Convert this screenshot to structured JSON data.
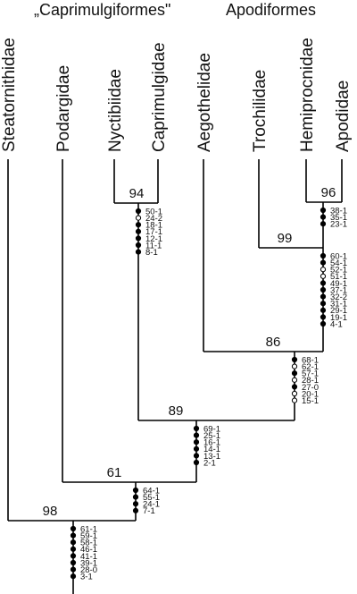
{
  "groups": {
    "left": "„Caprimulgiformes\"",
    "right": "Apodiformes"
  },
  "taxa": [
    {
      "id": "steatornithidae",
      "name": "Steatornithidae"
    },
    {
      "id": "podargidae",
      "name": "Podargidae"
    },
    {
      "id": "nyctibiidae",
      "name": "Nyctibiidae"
    },
    {
      "id": "caprimulgidae",
      "name": "Caprimulgidae"
    },
    {
      "id": "aegothelidae",
      "name": "Aegothelidae"
    },
    {
      "id": "trochilidae",
      "name": "Trochilidae"
    },
    {
      "id": "hemiprocnidae",
      "name": "Hemiprocnidae"
    },
    {
      "id": "apodidae",
      "name": "Apodidae"
    }
  ],
  "nodes": [
    {
      "id": "n94",
      "support": "94",
      "children": [
        "nyctibiidae",
        "caprimulgidae"
      ],
      "characters": [
        {
          "label": "50-1",
          "marker": "filled"
        },
        {
          "label": "24-2",
          "marker": "open"
        },
        {
          "label": "18-1",
          "marker": "filled"
        },
        {
          "label": "17-1",
          "marker": "filled"
        },
        {
          "label": "12-1",
          "marker": "filled"
        },
        {
          "label": "11-1",
          "marker": "filled"
        },
        {
          "label": "8-1",
          "marker": "filled"
        }
      ]
    },
    {
      "id": "n96",
      "support": "96",
      "children": [
        "hemiprocnidae",
        "apodidae"
      ],
      "characters": [
        {
          "label": "38-1",
          "marker": "filled"
        },
        {
          "label": "35-1",
          "marker": "filled"
        },
        {
          "label": "23-1",
          "marker": "filled"
        }
      ]
    },
    {
      "id": "n99",
      "support": "99",
      "children": [
        "trochilidae",
        "n96"
      ],
      "characters": [
        {
          "label": "60-1",
          "marker": "filled"
        },
        {
          "label": "54-1",
          "marker": "filled"
        },
        {
          "label": "52-1",
          "marker": "open"
        },
        {
          "label": "51-1",
          "marker": "open"
        },
        {
          "label": "49-1",
          "marker": "filled"
        },
        {
          "label": "37-1",
          "marker": "filled"
        },
        {
          "label": "32-2",
          "marker": "filled"
        },
        {
          "label": "31-1",
          "marker": "filled"
        },
        {
          "label": "29-1",
          "marker": "filled"
        },
        {
          "label": "19-1",
          "marker": "filled"
        },
        {
          "label": "4-1",
          "marker": "filled"
        }
      ]
    },
    {
      "id": "n86",
      "support": "86",
      "children": [
        "aegothelidae",
        "n99"
      ],
      "characters": [
        {
          "label": "68-1",
          "marker": "filled"
        },
        {
          "label": "62-1",
          "marker": "open"
        },
        {
          "label": "57-1",
          "marker": "filled"
        },
        {
          "label": "28-1",
          "marker": "open"
        },
        {
          "label": "27-0",
          "marker": "filled"
        },
        {
          "label": "20-1",
          "marker": "open"
        },
        {
          "label": "15-1",
          "marker": "open"
        }
      ]
    },
    {
      "id": "n89",
      "support": "89",
      "children": [
        "n94",
        "n86"
      ],
      "characters": [
        {
          "label": "69-1",
          "marker": "filled"
        },
        {
          "label": "25-1",
          "marker": "filled"
        },
        {
          "label": "16-1",
          "marker": "filled"
        },
        {
          "label": "14-1",
          "marker": "filled"
        },
        {
          "label": "13-1",
          "marker": "filled"
        },
        {
          "label": "2-1",
          "marker": "filled"
        }
      ]
    },
    {
      "id": "n61",
      "support": "61",
      "children": [
        "podargidae",
        "n89"
      ],
      "characters": [
        {
          "label": "64-1",
          "marker": "filled"
        },
        {
          "label": "55-1",
          "marker": "filled"
        },
        {
          "label": "24-1",
          "marker": "filled"
        },
        {
          "label": "7-1",
          "marker": "filled"
        }
      ]
    },
    {
      "id": "n98",
      "support": "98",
      "children": [
        "steatornithidae",
        "n61"
      ],
      "characters": [
        {
          "label": "61-1",
          "marker": "filled"
        },
        {
          "label": "59-1",
          "marker": "filled"
        },
        {
          "label": "58-1",
          "marker": "filled"
        },
        {
          "label": "46-1",
          "marker": "filled"
        },
        {
          "label": "41-1",
          "marker": "filled"
        },
        {
          "label": "39-1",
          "marker": "filled"
        },
        {
          "label": "28-0",
          "marker": "filled"
        },
        {
          "label": "3-1",
          "marker": "filled"
        }
      ]
    }
  ]
}
